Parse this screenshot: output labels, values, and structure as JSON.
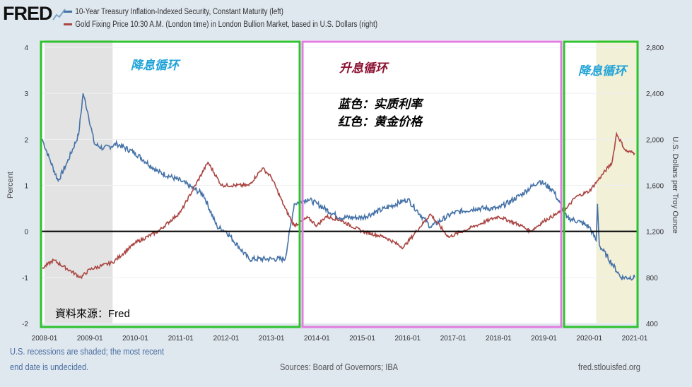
{
  "logo": "FRED",
  "legend": [
    {
      "label": "10-Year Treasury Inflation-Indexed Security, Constant Maturity (left)",
      "color": "#4572a7"
    },
    {
      "label": "Gold Fixing Price 10:30 A.M. (London time) in London Bullion Market, based in U.S. Dollars (right)",
      "color": "#aa4643"
    }
  ],
  "annotations": {
    "cut1": "降息循环",
    "hike": "升息循环",
    "cut2": "降息循环",
    "blue_note": "蓝色：实质利率",
    "red_note": "红色：黄金价格",
    "source_note": "資料來源：Fred"
  },
  "footer": {
    "recession_note1": "U.S. recessions are shaded; the most recent",
    "recession_note2": "end date is undecided.",
    "sources": "Sources: Board of Governors; IBA",
    "site": "fred.stlouisfed.org"
  },
  "chart_data": {
    "type": "line",
    "ylabel": "Percent",
    "y2label": "U.S. Dollars per Troy Ounce",
    "ylim": [
      -2,
      4
    ],
    "y2lim": [
      400,
      2800
    ],
    "yticks": [
      "4",
      "3",
      "2",
      "1",
      "0",
      "-1",
      "-2"
    ],
    "y2ticks": [
      "2,800",
      "2,400",
      "2,000",
      "1,600",
      "1,200",
      "800",
      "400"
    ],
    "xticks": [
      "2008-01",
      "2009-01",
      "2010-01",
      "2011-01",
      "2012-01",
      "2013-01",
      "2014-01",
      "2015-01",
      "2016-01",
      "2017-01",
      "2018-01",
      "2019-01",
      "2020-01",
      "2021-01"
    ],
    "recessions": [
      [
        2008.0,
        2009.5
      ],
      [
        2020.15,
        2021.05
      ]
    ],
    "series": [
      {
        "name": "10-Year Treasury Inflation-Indexed Security, Constant Maturity (left)",
        "axis": "left",
        "color": "#4572a7",
        "x": [
          2007.95,
          2008.1,
          2008.3,
          2008.5,
          2008.75,
          2008.85,
          2008.95,
          2009.1,
          2009.3,
          2009.6,
          2010.0,
          2010.5,
          2011.0,
          2011.5,
          2011.8,
          2012.0,
          2012.5,
          2013.0,
          2013.3,
          2013.5,
          2013.8,
          2014.0,
          2014.5,
          2015.0,
          2015.5,
          2016.0,
          2016.5,
          2017.0,
          2017.5,
          2018.0,
          2018.5,
          2018.9,
          2019.2,
          2019.5,
          2019.8,
          2020.0,
          2020.15,
          2020.18,
          2020.22,
          2020.5,
          2020.7,
          2021.0
        ],
        "y": [
          2.0,
          1.6,
          1.1,
          1.5,
          2.1,
          3.0,
          2.6,
          1.9,
          1.8,
          1.9,
          1.7,
          1.3,
          1.1,
          0.8,
          0.1,
          0.0,
          -0.6,
          -0.6,
          -0.6,
          0.6,
          0.7,
          0.6,
          0.3,
          0.3,
          0.5,
          0.7,
          0.1,
          0.4,
          0.5,
          0.5,
          0.8,
          1.1,
          0.9,
          0.3,
          0.2,
          0.1,
          -0.2,
          0.6,
          -0.3,
          -0.7,
          -1.0,
          -1.0
        ]
      },
      {
        "name": "Gold Fixing Price 10:30 A.M. (London time) in London Bullion Market, based in U.S. Dollars (right)",
        "axis": "right",
        "color": "#aa4643",
        "x": [
          2007.95,
          2008.2,
          2008.8,
          2009.0,
          2009.5,
          2010.0,
          2010.5,
          2011.0,
          2011.6,
          2011.9,
          2012.5,
          2012.8,
          2013.0,
          2013.3,
          2013.5,
          2013.8,
          2014.0,
          2014.2,
          2014.5,
          2015.0,
          2015.5,
          2015.9,
          2016.5,
          2016.9,
          2017.5,
          2017.8,
          2018.0,
          2018.5,
          2018.7,
          2019.0,
          2019.5,
          2019.7,
          2020.0,
          2020.2,
          2020.5,
          2020.6,
          2020.8,
          2021.0
        ],
        "y": [
          880,
          950,
          800,
          870,
          930,
          1100,
          1200,
          1370,
          1800,
          1600,
          1600,
          1750,
          1670,
          1400,
          1250,
          1320,
          1250,
          1330,
          1300,
          1200,
          1150,
          1060,
          1350,
          1150,
          1250,
          1300,
          1330,
          1250,
          1200,
          1290,
          1400,
          1500,
          1550,
          1650,
          1800,
          2050,
          1900,
          1880
        ]
      }
    ]
  }
}
